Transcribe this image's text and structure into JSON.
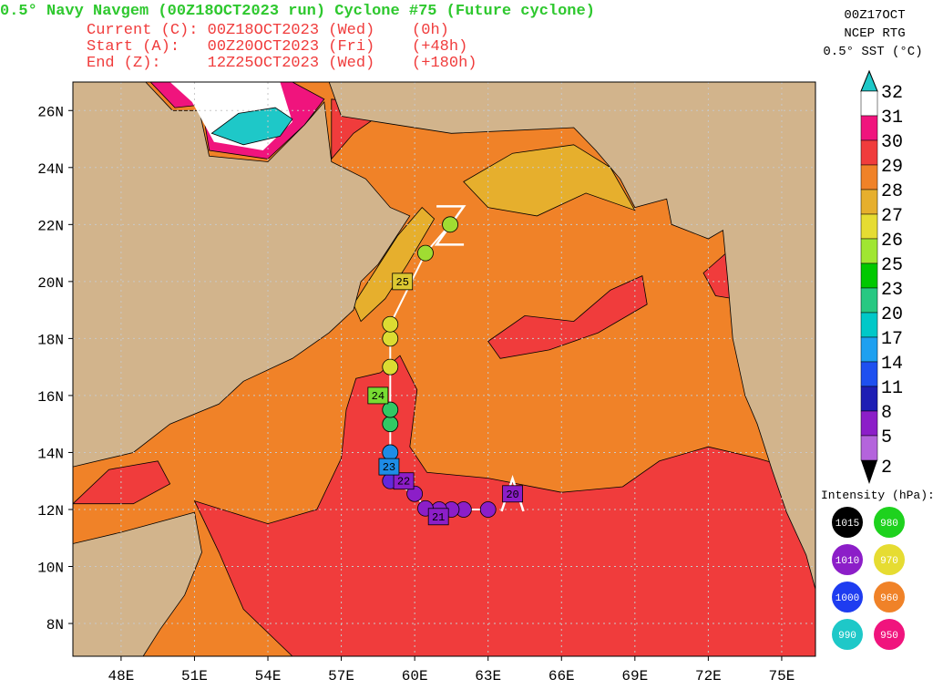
{
  "header": {
    "title": "0.5° Navy Navgem (00Z18OCT2023 run) Cyclone #75 (Future cyclone)",
    "lines": [
      "Current (C): 00Z18OCT2023 (Wed)    (0h)",
      "Start (A):   00Z20OCT2023 (Fri)    (+48h)",
      "End (Z):     12Z25OCT2023 (Wed)    (+180h)"
    ]
  },
  "sst_info": [
    "00Z17OCT",
    "NCEP RTG",
    "0.5° SST (°C)"
  ],
  "map": {
    "lon_range": [
      46.03,
      76.38
    ],
    "lat_range": [
      6.85,
      27.0
    ],
    "lon_ticks": [
      {
        "value": 48,
        "label": "48E"
      },
      {
        "value": 51,
        "label": "51E"
      },
      {
        "value": 54,
        "label": "54E"
      },
      {
        "value": 57,
        "label": "57E"
      },
      {
        "value": 60,
        "label": "60E"
      },
      {
        "value": 63,
        "label": "63E"
      },
      {
        "value": 66,
        "label": "66E"
      },
      {
        "value": 69,
        "label": "69E"
      },
      {
        "value": 72,
        "label": "72E"
      },
      {
        "value": 75,
        "label": "75E"
      }
    ],
    "lat_ticks": [
      {
        "value": 26,
        "label": "26N"
      },
      {
        "value": 24,
        "label": "24N"
      },
      {
        "value": 22,
        "label": "22N"
      },
      {
        "value": 20,
        "label": "20N"
      },
      {
        "value": 18,
        "label": "18N"
      },
      {
        "value": 16,
        "label": "16N"
      },
      {
        "value": 14,
        "label": "14N"
      },
      {
        "value": 12,
        "label": "12N"
      },
      {
        "value": 10,
        "label": "10N"
      },
      {
        "value": 8,
        "label": "8N"
      }
    ]
  },
  "track": {
    "points": [
      {
        "lon": 63.0,
        "lat": 12.0,
        "color": "#8c1ec8"
      },
      {
        "lon": 62.0,
        "lat": 12.0,
        "color": "#8c1ec8"
      },
      {
        "lon": 61.5,
        "lat": 12.0,
        "color": "#8c1ec8"
      },
      {
        "lon": 61.0,
        "lat": 12.0,
        "color": "#8c1ec8"
      },
      {
        "lon": 60.44,
        "lat": 12.04,
        "color": "#8c1ec8"
      },
      {
        "lon": 60.0,
        "lat": 12.55,
        "color": "#8c1ec8"
      },
      {
        "lon": 59.0,
        "lat": 13.0,
        "color": "#6428dc"
      },
      {
        "lon": 59.0,
        "lat": 14.0,
        "color": "#1e8ce6"
      },
      {
        "lon": 59.0,
        "lat": 15.0,
        "color": "#32c864"
      },
      {
        "lon": 59.0,
        "lat": 15.5,
        "color": "#32c864"
      },
      {
        "lon": 59.0,
        "lat": 17.0,
        "color": "#dcdc32"
      },
      {
        "lon": 59.0,
        "lat": 18.0,
        "color": "#dcdc32"
      },
      {
        "lon": 59.0,
        "lat": 18.5,
        "color": "#dcdc32"
      },
      {
        "lon": 60.44,
        "lat": 21.0,
        "color": "#a0dc32"
      },
      {
        "lon": 61.45,
        "lat": 22.0,
        "color": "#a0dc32"
      }
    ],
    "day_labels": [
      {
        "label": "20",
        "lon": 64.0,
        "lat": 12.55,
        "color": "#8c1ec8"
      },
      {
        "label": "21",
        "lon": 60.97,
        "lat": 11.75,
        "color": "#8c1ec8"
      },
      {
        "label": "22",
        "lon": 59.55,
        "lat": 13.0,
        "color": "#8c1ec8"
      },
      {
        "label": "23",
        "lon": 58.95,
        "lat": 13.5,
        "color": "#1e8ce6"
      },
      {
        "label": "24",
        "lon": 58.5,
        "lat": 16.0,
        "color": "#78dc32"
      },
      {
        "label": "25",
        "lon": 59.5,
        "lat": 20.0,
        "color": "#dcc832"
      }
    ],
    "start_marker": {
      "label": "A",
      "lon": 64.0,
      "lat": 12.45
    },
    "end_marker": {
      "label": "Z",
      "lon": 61.45,
      "lat": 22.0
    }
  },
  "colorbar": {
    "labels": [
      32,
      31,
      30,
      29,
      28,
      27,
      26,
      25,
      23,
      20,
      17,
      14,
      11,
      8,
      5,
      2
    ],
    "colors": [
      "#ffffff",
      "#f0147d",
      "#f03c3c",
      "#f08228",
      "#e6af2d",
      "#e6dc32",
      "#a0e632",
      "#00c800",
      "#28c882",
      "#00c8c8",
      "#1ea0f0",
      "#1e50f0",
      "#1e1eb4",
      "#8c1ec8",
      "#b464dc"
    ]
  },
  "intensity_legend": {
    "title": "Intensity (hPa):",
    "items": [
      {
        "label": "1015",
        "color": "#000000"
      },
      {
        "label": "980",
        "color": "#1ed21e"
      },
      {
        "label": "1010",
        "color": "#8c1ec8"
      },
      {
        "label": "970",
        "color": "#e6dc32"
      },
      {
        "label": "1000",
        "color": "#1e3cf0"
      },
      {
        "label": "960",
        "color": "#f08228"
      },
      {
        "label": "990",
        "color": "#1ec8c8"
      },
      {
        "label": "950",
        "color": "#f0147d"
      }
    ]
  }
}
